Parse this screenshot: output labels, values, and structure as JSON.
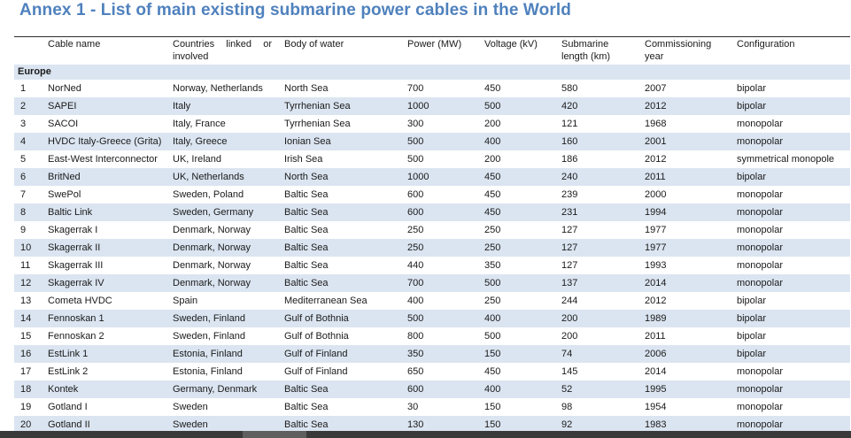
{
  "title": "Annex 1 - List of main existing submarine power cables in the World",
  "headers": {
    "cable_name": "Cable name",
    "countries": "Countries linked or involved",
    "body_of_water": "Body of water",
    "power": "Power (MW)",
    "voltage": "Voltage (kV)",
    "length": "Submarine length (km)",
    "year": "Commissioning year",
    "configuration": "Configuration"
  },
  "region": "Europe",
  "rows": [
    {
      "n": "1",
      "name": "NorNed",
      "countries": "Norway, Netherlands",
      "water": "North Sea",
      "power": "700",
      "voltage": "450",
      "length": "580",
      "year": "2007",
      "config": "bipolar"
    },
    {
      "n": "2",
      "name": "SAPEI",
      "countries": "Italy",
      "water": "Tyrrhenian Sea",
      "power": "1000",
      "voltage": "500",
      "length": "420",
      "year": "2012",
      "config": "bipolar"
    },
    {
      "n": "3",
      "name": "SACOI",
      "countries": "Italy, France",
      "water": "Tyrrhenian Sea",
      "power": "300",
      "voltage": "200",
      "length": "121",
      "year": "1968",
      "config": "monopolar"
    },
    {
      "n": "4",
      "name": "HVDC Italy-Greece (Grita)",
      "countries": "Italy, Greece",
      "water": "Ionian Sea",
      "power": "500",
      "voltage": "400",
      "length": "160",
      "year": "2001",
      "config": "monopolar"
    },
    {
      "n": "5",
      "name": "East-West Interconnector",
      "countries": "UK, Ireland",
      "water": "Irish Sea",
      "power": "500",
      "voltage": "200",
      "length": "186",
      "year": "2012",
      "config": "symmetrical monopole"
    },
    {
      "n": "6",
      "name": "BritNed",
      "countries": "UK, Netherlands",
      "water": "North Sea",
      "power": "1000",
      "voltage": "450",
      "length": "240",
      "year": "2011",
      "config": "bipolar"
    },
    {
      "n": "7",
      "name": "SwePol",
      "countries": "Sweden, Poland",
      "water": "Baltic Sea",
      "power": "600",
      "voltage": "450",
      "length": "239",
      "year": "2000",
      "config": "monopolar"
    },
    {
      "n": "8",
      "name": "Baltic Link",
      "countries": "Sweden, Germany",
      "water": "Baltic Sea",
      "power": "600",
      "voltage": "450",
      "length": "231",
      "year": "1994",
      "config": "monopolar"
    },
    {
      "n": "9",
      "name": "Skagerrak I",
      "countries": "Denmark, Norway",
      "water": "Baltic Sea",
      "power": "250",
      "voltage": "250",
      "length": "127",
      "year": "1977",
      "config": "monopolar"
    },
    {
      "n": "10",
      "name": "Skagerrak II",
      "countries": "Denmark, Norway",
      "water": "Baltic Sea",
      "power": "250",
      "voltage": "250",
      "length": "127",
      "year": "1977",
      "config": "monopolar"
    },
    {
      "n": "11",
      "name": "Skagerrak III",
      "countries": "Denmark, Norway",
      "water": "Baltic Sea",
      "power": "440",
      "voltage": "350",
      "length": "127",
      "year": "1993",
      "config": "monopolar"
    },
    {
      "n": "12",
      "name": "Skagerrak IV",
      "countries": "Denmark, Norway",
      "water": "Baltic Sea",
      "power": "700",
      "voltage": "500",
      "length": "137",
      "year": "2014",
      "config": "monopolar"
    },
    {
      "n": "13",
      "name": "Cometa HVDC",
      "countries": "Spain",
      "water": "Mediterranean Sea",
      "power": "400",
      "voltage": "250",
      "length": "244",
      "year": "2012",
      "config": "bipolar"
    },
    {
      "n": "14",
      "name": "Fennoskan 1",
      "countries": "Sweden, Finland",
      "water": "Gulf of Bothnia",
      "power": "500",
      "voltage": "400",
      "length": "200",
      "year": "1989",
      "config": "bipolar"
    },
    {
      "n": "15",
      "name": "Fennoskan 2",
      "countries": "Sweden, Finland",
      "water": "Gulf of Bothnia",
      "power": "800",
      "voltage": "500",
      "length": "200",
      "year": "2011",
      "config": "bipolar"
    },
    {
      "n": "16",
      "name": "EstLink 1",
      "countries": "Estonia, Finland",
      "water": "Gulf of Finland",
      "power": "350",
      "voltage": "150",
      "length": "74",
      "year": "2006",
      "config": "bipolar"
    },
    {
      "n": "17",
      "name": "EstLink 2",
      "countries": "Estonia, Finland",
      "water": "Gulf of Finland",
      "power": "650",
      "voltage": "450",
      "length": "145",
      "year": "2014",
      "config": "monopolar"
    },
    {
      "n": "18",
      "name": "Kontek",
      "countries": "Germany, Denmark",
      "water": "Baltic Sea",
      "power": "600",
      "voltage": "400",
      "length": "52",
      "year": "1995",
      "config": "monopolar"
    },
    {
      "n": "19",
      "name": "Gotland I",
      "countries": "Sweden",
      "water": "Baltic Sea",
      "power": "30",
      "voltage": "150",
      "length": "98",
      "year": "1954",
      "config": "monopolar"
    },
    {
      "n": "20",
      "name": "Gotland II",
      "countries": "Sweden",
      "water": "Baltic Sea",
      "power": "130",
      "voltage": "150",
      "length": "92",
      "year": "1983",
      "config": "monopolar"
    }
  ]
}
